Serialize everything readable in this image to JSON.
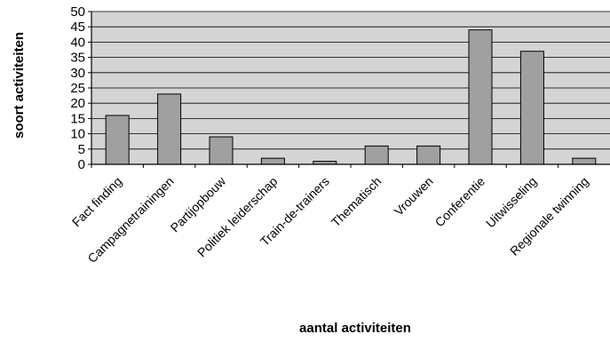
{
  "chart_data": {
    "type": "bar",
    "title": "",
    "xlabel": "aantal activiteiten",
    "ylabel": "soort activiteiten",
    "ylim": [
      0,
      50
    ],
    "ytick_step": 5,
    "grid": true,
    "categories": [
      "Fact finding",
      "Campagnetrainingen",
      "Partijopbouw",
      "Politiek leiderschap",
      "Train-de-trainers",
      "Thematisch",
      "Vrouwen",
      "Conferentie",
      "Uitwisseling",
      "Regionale twinning"
    ],
    "values": [
      16,
      23,
      9,
      2,
      1,
      6,
      6,
      44,
      37,
      2
    ],
    "colors": {
      "plot_background": "#d4d4d4",
      "bar_fill": "#a0a0a0",
      "bar_stroke": "#000000",
      "gridline": "#000000"
    }
  }
}
